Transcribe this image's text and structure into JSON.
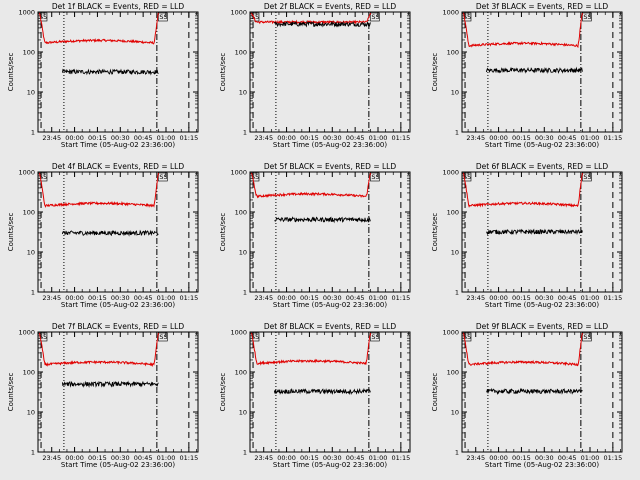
{
  "figure": {
    "background": "#e9e9e9",
    "event_color": "#000000",
    "lld_color": "#e00000",
    "ylabel": "Counts/sec",
    "xlabel": "Start Time (05-Aug-02 23:36:00)",
    "ytick_labels": [
      "1",
      "10",
      "100",
      "1000"
    ],
    "xtick_labels": [
      "23:45",
      "00:00",
      "00:15",
      "00:30",
      "00:45",
      "01:00",
      "01:15"
    ],
    "flag_text": "SS"
  },
  "chart_data": [
    {
      "type": "line",
      "title": "Det 1f BLACK = Events, RED = LLD",
      "ylim": [
        1,
        1000
      ],
      "xlim_minutes": [
        0,
        105
      ],
      "series": [
        {
          "role": "events",
          "level": 32
        },
        {
          "role": "lld",
          "level": 165
        }
      ]
    },
    {
      "type": "line",
      "title": "Det 2f BLACK = Events, RED = LLD",
      "ylim": [
        1,
        1000
      ],
      "xlim_minutes": [
        0,
        105
      ],
      "series": [
        {
          "role": "events",
          "level": 500
        },
        {
          "role": "lld",
          "level": 560
        }
      ]
    },
    {
      "type": "line",
      "title": "Det 3f BLACK = Events, RED = LLD",
      "ylim": [
        1,
        1000
      ],
      "xlim_minutes": [
        0,
        105
      ],
      "series": [
        {
          "role": "events",
          "level": 35
        },
        {
          "role": "lld",
          "level": 140
        }
      ]
    },
    {
      "type": "line",
      "title": "Det 4f BLACK = Events, RED = LLD",
      "ylim": [
        1,
        1000
      ],
      "xlim_minutes": [
        0,
        105
      ],
      "series": [
        {
          "role": "events",
          "level": 30
        },
        {
          "role": "lld",
          "level": 140
        }
      ]
    },
    {
      "type": "line",
      "title": "Det 5f BLACK = Events, RED = LLD",
      "ylim": [
        1,
        1000
      ],
      "xlim_minutes": [
        0,
        105
      ],
      "series": [
        {
          "role": "events",
          "level": 65
        },
        {
          "role": "lld",
          "level": 240
        }
      ]
    },
    {
      "type": "line",
      "title": "Det 6f BLACK = Events, RED = LLD",
      "ylim": [
        1,
        1000
      ],
      "xlim_minutes": [
        0,
        105
      ],
      "series": [
        {
          "role": "events",
          "level": 32
        },
        {
          "role": "lld",
          "level": 140
        }
      ]
    },
    {
      "type": "line",
      "title": "Det 7f BLACK = Events, RED = LLD",
      "ylim": [
        1,
        1000
      ],
      "xlim_minutes": [
        0,
        105
      ],
      "series": [
        {
          "role": "events",
          "level": 50
        },
        {
          "role": "lld",
          "level": 150
        }
      ]
    },
    {
      "type": "line",
      "title": "Det 8f BLACK = Events, RED = LLD",
      "ylim": [
        1,
        1000
      ],
      "xlim_minutes": [
        0,
        105
      ],
      "series": [
        {
          "role": "events",
          "level": 33
        },
        {
          "role": "lld",
          "level": 160
        }
      ]
    },
    {
      "type": "line",
      "title": "Det 9f BLACK = Events, RED = LLD",
      "ylim": [
        1,
        1000
      ],
      "xlim_minutes": [
        0,
        105
      ],
      "series": [
        {
          "role": "events",
          "level": 33
        },
        {
          "role": "lld",
          "level": 150
        }
      ]
    }
  ]
}
